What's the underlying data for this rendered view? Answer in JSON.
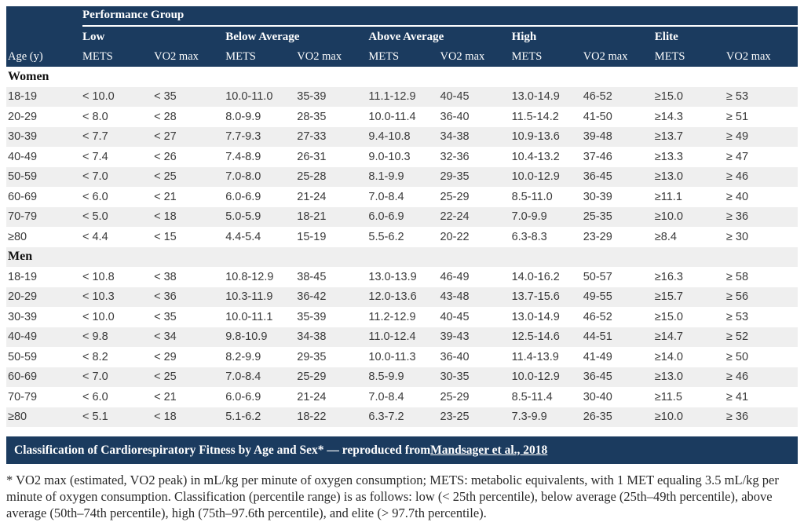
{
  "colors": {
    "navy": "#1b3b5f",
    "stripe": "#efefef",
    "body_text": "#3b3b3b"
  },
  "table": {
    "group_header": "Performance Group",
    "corner_label": "Age (y)",
    "groups": [
      {
        "label": "Low"
      },
      {
        "label": "Below Average"
      },
      {
        "label": "Above Average"
      },
      {
        "label": "High"
      },
      {
        "label": "Elite"
      }
    ],
    "columns": [
      "METS",
      "VO2 max",
      "METS",
      "VO2 max",
      "METS",
      "VO2 max",
      "METS",
      "VO2 max",
      "METS",
      "VO2 max"
    ],
    "sections": [
      {
        "label": "Women",
        "rows": [
          {
            "age": "18-19",
            "values": [
              "< 10.0",
              "< 35",
              "10.0-11.0",
              "35-39",
              "11.1-12.9",
              "40-45",
              "13.0-14.9",
              "46-52",
              "≥15.0",
              "≥ 53"
            ]
          },
          {
            "age": "20-29",
            "values": [
              "< 8.0",
              "< 28",
              "8.0-9.9",
              "28-35",
              "10.0-11.4",
              "36-40",
              "11.5-14.2",
              "41-50",
              "≥14.3",
              "≥ 51"
            ]
          },
          {
            "age": "30-39",
            "values": [
              "< 7.7",
              "< 27",
              "7.7-9.3",
              "27-33",
              "9.4-10.8",
              "34-38",
              "10.9-13.6",
              "39-48",
              "≥13.7",
              "≥ 49"
            ]
          },
          {
            "age": "40-49",
            "values": [
              "< 7.4",
              "< 26",
              "7.4-8.9",
              "26-31",
              "9.0-10.3",
              "32-36",
              "10.4-13.2",
              "37-46",
              "≥13.3",
              "≥ 47"
            ]
          },
          {
            "age": "50-59",
            "values": [
              "< 7.0",
              "< 25",
              "7.0-8.0",
              "25-28",
              "8.1-9.9",
              "29-35",
              "10.0-12.9",
              "36-45",
              "≥13.0",
              "≥ 46"
            ]
          },
          {
            "age": "60-69",
            "values": [
              "< 6.0",
              "< 21",
              "6.0-6.9",
              "21-24",
              "7.0-8.4",
              "25-29",
              "8.5-11.0",
              "30-39",
              "≥11.1",
              "≥ 40"
            ]
          },
          {
            "age": "70-79",
            "values": [
              "< 5.0",
              "< 18",
              "5.0-5.9",
              "18-21",
              "6.0-6.9",
              "22-24",
              "7.0-9.9",
              "25-35",
              "≥10.0",
              "≥ 36"
            ]
          },
          {
            "age": "≥80",
            "values": [
              "< 4.4",
              "< 15",
              "4.4-5.4",
              "15-19",
              "5.5-6.2",
              "20-22",
              "6.3-8.3",
              "23-29",
              "≥8.4",
              "≥ 30"
            ]
          }
        ]
      },
      {
        "label": "Men",
        "rows": [
          {
            "age": "18-19",
            "values": [
              "< 10.8",
              "< 38",
              "10.8-12.9",
              "38-45",
              "13.0-13.9",
              "46-49",
              "14.0-16.2",
              "50-57",
              "≥16.3",
              "≥ 58"
            ]
          },
          {
            "age": "20-29",
            "values": [
              "< 10.3",
              "< 36",
              "10.3-11.9",
              "36-42",
              "12.0-13.6",
              "43-48",
              "13.7-15.6",
              "49-55",
              "≥15.7",
              "≥ 56"
            ]
          },
          {
            "age": "30-39",
            "values": [
              "< 10.0",
              "< 35",
              "10.0-11.1",
              "35-39",
              "11.2-12.9",
              "40-45",
              "13.0-14.9",
              "46-52",
              "≥15.0",
              "≥ 53"
            ]
          },
          {
            "age": "40-49",
            "values": [
              "< 9.8",
              "< 34",
              "9.8-10.9",
              "34-38",
              "11.0-12.4",
              "39-43",
              "12.5-14.6",
              "44-51",
              "≥14.7",
              "≥ 52"
            ]
          },
          {
            "age": "50-59",
            "values": [
              "< 8.2",
              "< 29",
              "8.2-9.9",
              "29-35",
              "10.0-11.3",
              "36-40",
              "11.4-13.9",
              "41-49",
              "≥14.0",
              "≥ 50"
            ]
          },
          {
            "age": "60-69",
            "values": [
              "< 7.0",
              "< 25",
              "7.0-8.4",
              "25-29",
              "8.5-9.9",
              "30-35",
              "10.0-12.9",
              "36-45",
              "≥13.0",
              "≥ 46"
            ]
          },
          {
            "age": "70-79",
            "values": [
              "< 6.0",
              "< 21",
              "6.0-6.9",
              "21-24",
              "7.0-8.4",
              "25-29",
              "8.5-11.4",
              "30-40",
              "≥11.5",
              "≥ 41"
            ]
          },
          {
            "age": "≥80",
            "values": [
              "< 5.1",
              "< 18",
              "5.1-6.2",
              "18-22",
              "6.3-7.2",
              "23-25",
              "7.3-9.9",
              "26-35",
              "≥10.0",
              "≥ 36"
            ]
          }
        ]
      }
    ]
  },
  "caption": {
    "prefix": "Classification of Cardiorespiratory Fitness by Age and Sex* — reproduced from ",
    "link_text": "Mandsager et al., 2018"
  },
  "footnote": "* VO2 max (estimated, VO2 peak) in mL/kg per minute of oxygen consumption; METS: metabolic equivalents, with 1 MET equaling 3.5 mL/kg per minute of oxygen consumption. Classification (percentile range) is as follows: low (< 25th percentile), below average (25th–49th percentile), above average (50th–74th percentile), high (75th–97.6th percentile), and elite (> 97.7th percentile)."
}
